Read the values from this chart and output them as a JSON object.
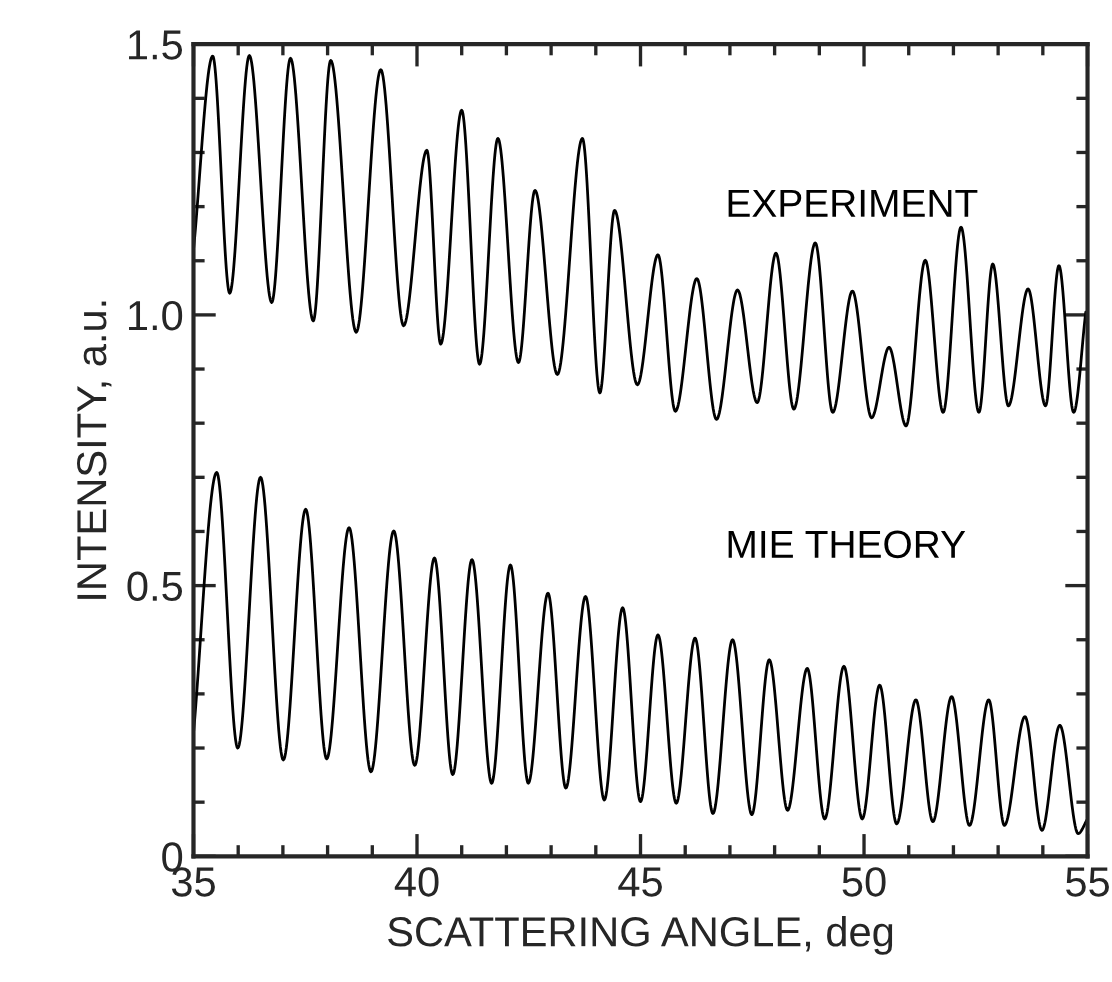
{
  "chart_data": {
    "type": "line",
    "xlabel": "SCATTERING ANGLE, deg",
    "ylabel": "INTENSITY, a.u.",
    "xlim": [
      35,
      55
    ],
    "xticks": [
      35,
      40,
      45,
      50,
      55
    ],
    "ylim": [
      0,
      1.5
    ],
    "yticks": [
      0,
      {
        "value": 0.5,
        "label": "0.5"
      },
      {
        "value": 1.0,
        "label": "1.0"
      },
      {
        "value": 1.5,
        "label": "1.5"
      }
    ],
    "grid": false,
    "legend": false,
    "marker": "none",
    "line_style": "solid",
    "series": [
      {
        "name": "EXPERIMENT",
        "color": "#000000",
        "x": [
          35.0,
          35.43,
          35.81,
          36.25,
          36.75,
          37.17,
          37.68,
          38.07,
          38.64,
          39.19,
          39.7,
          40.22,
          40.53,
          41.0,
          41.4,
          41.81,
          42.27,
          42.64,
          43.14,
          43.7,
          44.09,
          44.42,
          44.93,
          45.39,
          45.78,
          46.26,
          46.7,
          47.17,
          47.61,
          48.03,
          48.43,
          48.91,
          49.3,
          49.74,
          50.17,
          50.56,
          50.94,
          51.37,
          51.77,
          52.17,
          52.57,
          52.88,
          53.23,
          53.67,
          54.06,
          54.36,
          54.69,
          54.96
        ],
        "values": [
          1.12,
          1.478,
          1.04,
          1.479,
          1.023,
          1.474,
          0.989,
          1.47,
          0.968,
          1.453,
          0.98,
          1.304,
          0.946,
          1.378,
          0.909,
          1.326,
          0.912,
          1.23,
          0.89,
          1.326,
          0.856,
          1.193,
          0.871,
          1.111,
          0.822,
          1.067,
          0.807,
          1.046,
          0.838,
          1.114,
          0.826,
          1.133,
          0.82,
          1.044,
          0.81,
          0.94,
          0.795,
          1.101,
          0.82,
          1.162,
          0.82,
          1.094,
          0.832,
          1.048,
          0.832,
          1.091,
          0.82,
          1.005
        ]
      },
      {
        "name": "MIE THEORY",
        "color": "#000000",
        "x": [
          35.0,
          35.52,
          35.99,
          36.5,
          37.01,
          37.51,
          37.98,
          38.48,
          38.97,
          39.48,
          39.95,
          40.39,
          40.8,
          41.23,
          41.67,
          42.09,
          42.49,
          42.93,
          43.33,
          43.77,
          44.19,
          44.6,
          45.0,
          45.39,
          45.8,
          46.22,
          46.62,
          47.06,
          47.49,
          47.88,
          48.29,
          48.73,
          49.12,
          49.55,
          49.96,
          50.35,
          50.73,
          51.16,
          51.54,
          51.96,
          52.36,
          52.79,
          53.14,
          53.6,
          53.98,
          54.38,
          54.79,
          55.0
        ],
        "values": [
          0.227,
          0.709,
          0.2,
          0.7,
          0.178,
          0.641,
          0.18,
          0.607,
          0.156,
          0.601,
          0.168,
          0.551,
          0.151,
          0.548,
          0.135,
          0.538,
          0.135,
          0.486,
          0.126,
          0.48,
          0.104,
          0.459,
          0.101,
          0.409,
          0.098,
          0.403,
          0.079,
          0.4,
          0.077,
          0.363,
          0.085,
          0.347,
          0.069,
          0.351,
          0.069,
          0.316,
          0.06,
          0.289,
          0.064,
          0.295,
          0.057,
          0.289,
          0.057,
          0.258,
          0.048,
          0.242,
          0.042,
          0.069
        ]
      }
    ]
  }
}
